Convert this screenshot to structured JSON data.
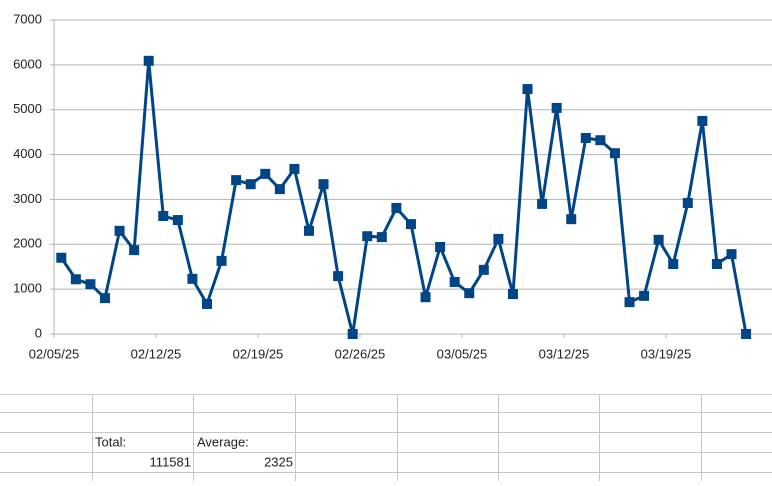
{
  "chart_data": {
    "type": "line",
    "categories": [
      "02/05/25",
      null,
      null,
      null,
      null,
      null,
      null,
      "02/12/25",
      null,
      null,
      null,
      null,
      null,
      null,
      "02/19/25",
      null,
      null,
      null,
      null,
      null,
      null,
      "02/26/25",
      null,
      null,
      null,
      null,
      null,
      null,
      "03/05/25",
      null,
      null,
      null,
      null,
      null,
      null,
      "03/12/25",
      null,
      null,
      null,
      null,
      null,
      null,
      "03/19/25",
      null,
      null,
      null,
      null,
      null
    ],
    "series": [
      {
        "color": "#004586",
        "values": [
          1700,
          1220,
          1110,
          800,
          2300,
          1870,
          6090,
          2630,
          2540,
          1230,
          670,
          1630,
          3430,
          3340,
          3570,
          3230,
          3680,
          2300,
          3340,
          1290,
          0,
          2180,
          2160,
          2810,
          2450,
          820,
          1940,
          1160,
          910,
          1430,
          2120,
          890,
          5460,
          2900,
          5040,
          2560,
          4370,
          4320,
          4030,
          710,
          850,
          2100,
          1560,
          2920,
          4750,
          1560,
          1780,
          0
        ]
      }
    ],
    "ylim": [
      0,
      7000
    ],
    "yticks": [
      0,
      1000,
      2000,
      3000,
      4000,
      5000,
      6000,
      7000
    ],
    "grid": true
  },
  "sheet": {
    "total_label": "Total:",
    "average_label": "Average:",
    "total": 111581,
    "average": 2325
  }
}
